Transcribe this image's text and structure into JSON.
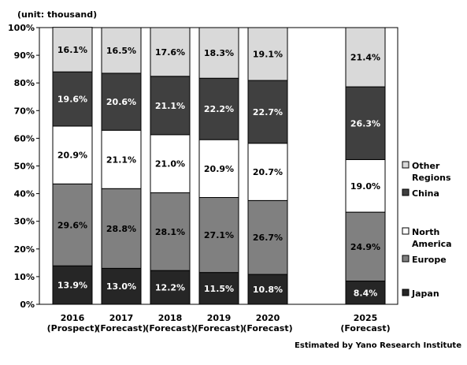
{
  "chart_data": {
    "type": "bar",
    "stacked": true,
    "unit_label": "(unit: thousand)",
    "source": "Estimated by Yano Research Institute",
    "categories": [
      [
        "2016",
        "(Prospect)"
      ],
      [
        "2017",
        "(Forecast)"
      ],
      [
        "2018",
        "(Forecast)"
      ],
      [
        "2019",
        "(Forecast)"
      ],
      [
        "2020",
        "(Forecast)"
      ],
      [
        "2025",
        "(Forecast)"
      ]
    ],
    "category_slots": [
      0,
      1,
      2,
      3,
      4,
      6
    ],
    "ylim": [
      0,
      100
    ],
    "yticks": [
      "0%",
      "10%",
      "20%",
      "30%",
      "40%",
      "50%",
      "60%",
      "70%",
      "80%",
      "90%",
      "100%"
    ],
    "legend_position": "right",
    "series": [
      {
        "name": "Japan",
        "legend_lines": [
          "Japan"
        ],
        "color": "#262626",
        "label_color": "#ffffff",
        "values": [
          13.9,
          13.0,
          12.2,
          11.5,
          10.8,
          8.4
        ],
        "labels": [
          "13.9%",
          "13.0%",
          "12.2%",
          "11.5%",
          "10.8%",
          "8.4%"
        ]
      },
      {
        "name": "Europe",
        "legend_lines": [
          "Europe"
        ],
        "color": "#808080",
        "label_color": "#000000",
        "values": [
          29.6,
          28.8,
          28.1,
          27.1,
          26.7,
          24.9
        ],
        "labels": [
          "29.6%",
          "28.8%",
          "28.1%",
          "27.1%",
          "26.7%",
          "24.9%"
        ]
      },
      {
        "name": "North America",
        "legend_lines": [
          "North",
          "America"
        ],
        "color": "#ffffff",
        "label_color": "#000000",
        "values": [
          20.9,
          21.1,
          21.0,
          20.9,
          20.7,
          19.0
        ],
        "labels": [
          "20.9%",
          "21.1%",
          "21.0%",
          "20.9%",
          "20.7%",
          "19.0%"
        ]
      },
      {
        "name": "China",
        "legend_lines": [
          "China"
        ],
        "color": "#404040",
        "label_color": "#ffffff",
        "values": [
          19.6,
          20.6,
          21.1,
          22.2,
          22.7,
          26.3
        ],
        "labels": [
          "19.6%",
          "20.6%",
          "21.1%",
          "22.2%",
          "22.7%",
          "26.3%"
        ]
      },
      {
        "name": "Other Regions",
        "legend_lines": [
          "Other",
          "Regions"
        ],
        "color": "#d9d9d9",
        "label_color": "#000000",
        "values": [
          16.1,
          16.5,
          17.6,
          18.3,
          19.1,
          21.4
        ],
        "labels": [
          "16.1%",
          "16.5%",
          "17.6%",
          "18.3%",
          "19.1%",
          "21.4%"
        ]
      }
    ]
  }
}
